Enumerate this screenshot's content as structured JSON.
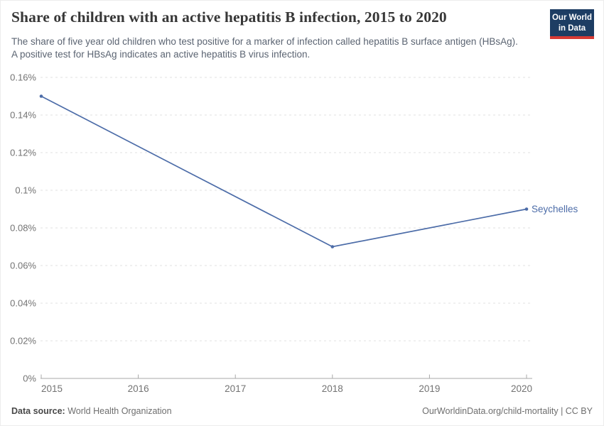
{
  "header": {
    "title": "Share of children with an active hepatitis B infection, 2015 to 2020",
    "subtitle": "The share of five year old children who test positive for a marker of infection called hepatitis B surface antigen (HBsAg). A positive test for HBsAg indicates an active hepatitis B virus infection.",
    "logo": {
      "line1": "Our World",
      "line2": "in Data",
      "bg_color": "#1d3d63",
      "accent_color": "#d73a34"
    }
  },
  "chart_data": {
    "type": "line",
    "title": "Share of children with an active hepatitis B infection, 2015 to 2020",
    "xlabel": "",
    "ylabel": "",
    "grid": "horizontal-dashed",
    "legend_position": "end-of-line-label",
    "x_axis": {
      "min": 2015,
      "max": 2020,
      "ticks": [
        2015,
        2016,
        2017,
        2018,
        2019,
        2020
      ]
    },
    "y_axis": {
      "min": 0,
      "max": 0.16,
      "unit": "%",
      "ticks": [
        {
          "value": 0,
          "label": "0%"
        },
        {
          "value": 0.02,
          "label": "0.02%"
        },
        {
          "value": 0.04,
          "label": "0.04%"
        },
        {
          "value": 0.06,
          "label": "0.06%"
        },
        {
          "value": 0.08,
          "label": "0.08%"
        },
        {
          "value": 0.1,
          "label": "0.1%"
        },
        {
          "value": 0.12,
          "label": "0.12%"
        },
        {
          "value": 0.14,
          "label": "0.14%"
        },
        {
          "value": 0.16,
          "label": "0.16%"
        }
      ]
    },
    "series": [
      {
        "name": "Seychelles",
        "color": "#4c6ca8",
        "points": [
          {
            "year": 2015,
            "value": 0.15
          },
          {
            "year": 2018,
            "value": 0.07
          },
          {
            "year": 2020,
            "value": 0.09
          }
        ]
      }
    ]
  },
  "footer": {
    "datasource_label": "Data source:",
    "datasource_value": "World Health Organization",
    "link": "OurWorldinData.org/child-mortality | CC BY"
  }
}
